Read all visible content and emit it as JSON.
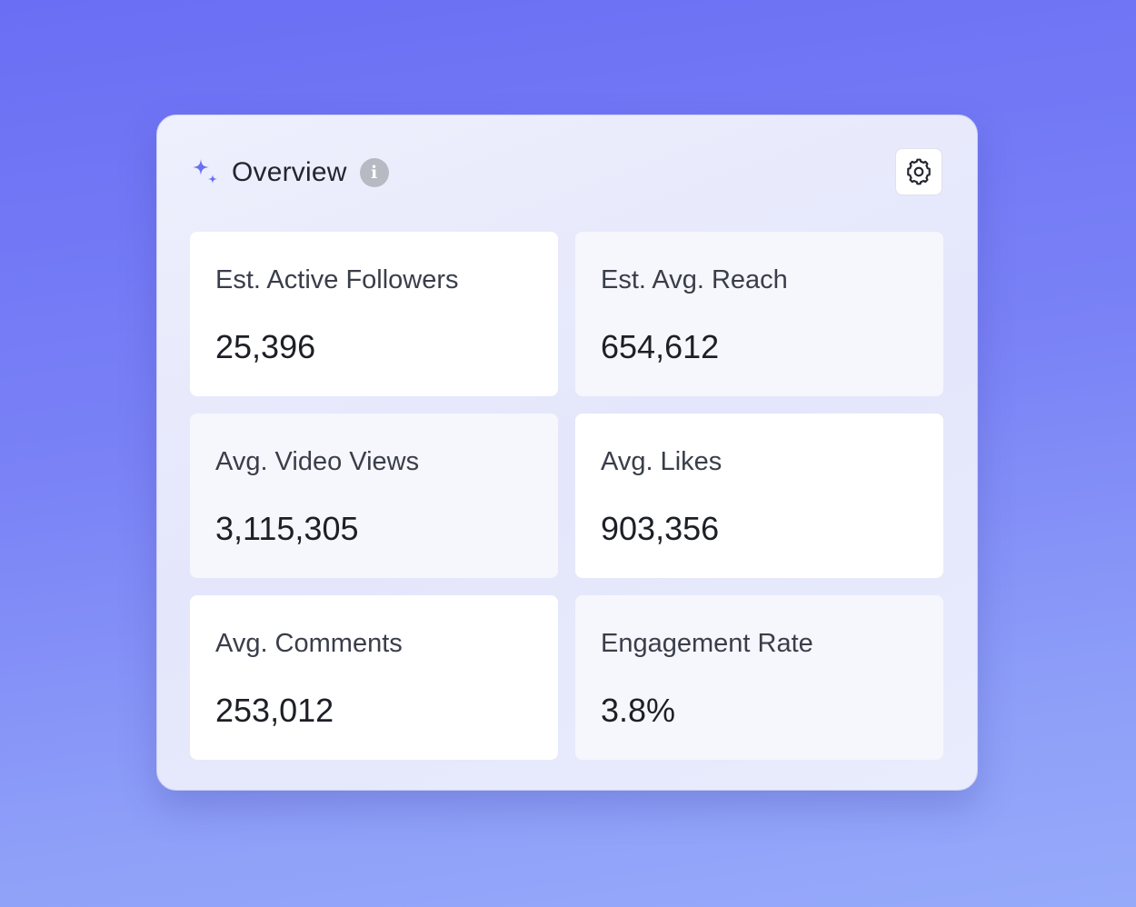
{
  "header": {
    "title": "Overview",
    "info_glyph": "i",
    "icons": {
      "sparkle": "sparkle-icon",
      "info": "info-icon",
      "settings": "gear-icon"
    }
  },
  "colors": {
    "accent": "#6b70f0",
    "background_top": "#6a6ef4",
    "background_bottom": "#96aafa"
  },
  "metrics": [
    {
      "label": "Est. Active Followers",
      "value": "25,396"
    },
    {
      "label": "Est. Avg. Reach",
      "value": "654,612"
    },
    {
      "label": "Avg. Video Views",
      "value": "3,115,305"
    },
    {
      "label": "Avg. Likes",
      "value": "903,356"
    },
    {
      "label": "Avg. Comments",
      "value": "253,012"
    },
    {
      "label": "Engagement Rate",
      "value": "3.8%"
    }
  ]
}
